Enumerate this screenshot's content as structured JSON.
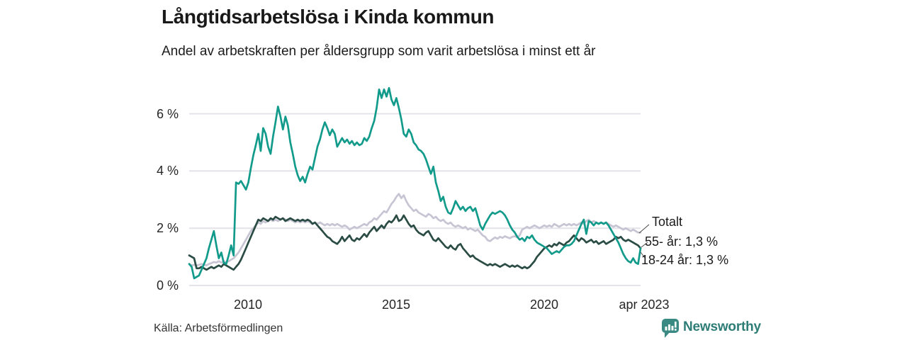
{
  "chart_data": {
    "type": "line",
    "title": "Långtidsarbetslösa i Kinda kommun",
    "subtitle": "Andel av arbetskraften per åldersgrupp som varit arbetslösa i minst ett år",
    "frequency": "monthly",
    "x_start": "2008-01",
    "x_end": "2023-04",
    "xlim": [
      2008,
      2023.33
    ],
    "ylim": [
      0,
      7
    ],
    "grid": "horizontal",
    "legend_position": "end-labels-right",
    "y_ticks": [
      {
        "label": "0 %",
        "value": 0
      },
      {
        "label": "2 %",
        "value": 2
      },
      {
        "label": "4 %",
        "value": 4
      },
      {
        "label": "6 %",
        "value": 6
      }
    ],
    "x_ticks": [
      {
        "label": "2010",
        "year": 2010
      },
      {
        "label": "2015",
        "year": 2015
      },
      {
        "label": "2020",
        "year": 2020
      },
      {
        "label": "apr 2023",
        "year": 2023.29
      }
    ],
    "series": [
      {
        "name": "Totalt",
        "color": "#c7c5d3",
        "end_label": "Totalt",
        "values": [
          0.75,
          0.7,
          0.72,
          0.7,
          0.72,
          0.75,
          0.72,
          0.7,
          0.75,
          0.78,
          0.82,
          0.8,
          0.85,
          0.8,
          0.85,
          0.8,
          0.85,
          0.9,
          0.95,
          1.05,
          1.15,
          1.3,
          1.45,
          1.6,
          1.75,
          1.9,
          2.0,
          2.1,
          2.2,
          2.15,
          2.25,
          2.2,
          2.25,
          2.3,
          2.25,
          2.3,
          2.25,
          2.3,
          2.35,
          2.3,
          2.25,
          2.3,
          2.25,
          2.2,
          2.25,
          2.2,
          2.25,
          2.2,
          2.25,
          2.2,
          2.15,
          2.2,
          2.15,
          2.2,
          2.15,
          2.1,
          2.15,
          2.1,
          2.15,
          2.1,
          2.15,
          2.1,
          2.05,
          2.1,
          2.05,
          1.95,
          2.0,
          2.05,
          2.0,
          2.05,
          2.1,
          2.15,
          2.1,
          2.2,
          2.25,
          2.35,
          2.3,
          2.4,
          2.5,
          2.6,
          2.55,
          2.7,
          2.85,
          2.95,
          3.1,
          3.2,
          3.05,
          3.15,
          2.95,
          2.8,
          2.7,
          2.6,
          2.65,
          2.55,
          2.5,
          2.45,
          2.4,
          2.5,
          2.45,
          2.35,
          2.4,
          2.3,
          2.25,
          2.3,
          2.2,
          2.15,
          2.2,
          2.1,
          2.05,
          2.1,
          2.05,
          2.0,
          2.05,
          1.95,
          2.0,
          1.95,
          1.9,
          1.95,
          1.85,
          1.75,
          1.7,
          1.58,
          1.55,
          1.62,
          1.68,
          1.63,
          1.7,
          1.66,
          1.72,
          1.68,
          1.65,
          1.7,
          1.72,
          1.68,
          1.75,
          1.95,
          2.0,
          2.05,
          2.0,
          2.05,
          2.1,
          2.05,
          2.0,
          2.05,
          2.1,
          2.05,
          2.1,
          2.05,
          2.15,
          2.1,
          2.05,
          2.1,
          2.15,
          2.1,
          2.15,
          2.1,
          2.15,
          2.1,
          2.15,
          2.2,
          2.15,
          2.25,
          2.3,
          2.2,
          2.25,
          2.2,
          2.15,
          2.2,
          2.15,
          2.2,
          2.15,
          2.1,
          2.05,
          2.1,
          2.05,
          2.0,
          1.95,
          2.0,
          1.95,
          1.9,
          1.95,
          1.9,
          1.85,
          1.85
        ]
      },
      {
        "name": "55- år",
        "color": "#2b4c44",
        "end_label": "55- år: 1,3 %",
        "final_value": "1,3 %",
        "values": [
          1.05,
          1.0,
          0.95,
          0.6,
          0.6,
          0.65,
          0.6,
          0.55,
          0.6,
          0.65,
          0.6,
          0.65,
          0.7,
          0.65,
          0.75,
          0.7,
          0.65,
          0.6,
          0.55,
          0.65,
          0.75,
          0.9,
          1.1,
          1.3,
          1.5,
          1.7,
          1.9,
          2.1,
          2.3,
          2.25,
          2.35,
          2.3,
          2.25,
          2.35,
          2.3,
          2.4,
          2.35,
          2.3,
          2.35,
          2.25,
          2.3,
          2.35,
          2.3,
          2.25,
          2.3,
          2.25,
          2.3,
          2.25,
          2.3,
          2.25,
          2.15,
          2.2,
          2.1,
          2.0,
          1.9,
          1.8,
          1.7,
          1.65,
          1.55,
          1.5,
          1.45,
          1.55,
          1.7,
          1.55,
          1.65,
          1.75,
          1.6,
          1.55,
          1.65,
          1.6,
          1.7,
          1.8,
          1.7,
          1.85,
          1.95,
          2.05,
          1.9,
          2.0,
          2.1,
          2.0,
          2.15,
          2.25,
          2.2,
          2.3,
          2.45,
          2.25,
          2.3,
          2.45,
          2.3,
          2.15,
          2.05,
          2.1,
          1.95,
          1.85,
          1.8,
          1.75,
          1.85,
          1.9,
          1.75,
          1.6,
          1.55,
          1.65,
          1.55,
          1.45,
          1.35,
          1.3,
          1.4,
          1.3,
          1.25,
          1.4,
          1.45,
          1.3,
          1.2,
          1.1,
          1.0,
          1.05,
          0.95,
          0.9,
          0.85,
          0.8,
          0.75,
          0.7,
          0.75,
          0.7,
          0.75,
          0.7,
          0.65,
          0.7,
          0.75,
          0.7,
          0.65,
          0.7,
          0.65,
          0.7,
          0.65,
          0.6,
          0.65,
          0.6,
          0.65,
          0.75,
          0.85,
          1.0,
          1.1,
          1.2,
          1.3,
          1.35,
          1.4,
          1.35,
          1.45,
          1.4,
          1.5,
          1.45,
          1.4,
          1.5,
          1.55,
          1.65,
          1.75,
          1.65,
          1.55,
          1.65,
          1.6,
          1.5,
          1.55,
          1.6,
          1.5,
          1.55,
          1.45,
          1.5,
          1.55,
          1.45,
          1.5,
          1.55,
          1.6,
          1.7,
          1.65,
          1.7,
          1.6,
          1.55,
          1.6,
          1.55,
          1.5,
          1.45,
          1.4,
          1.3
        ]
      },
      {
        "name": "18-24 år",
        "color": "#129b8b",
        "end_label": "18-24 år: 1,3 %",
        "final_value": "1,3 %",
        "values": [
          0.75,
          0.65,
          0.25,
          0.3,
          0.35,
          0.55,
          0.75,
          0.95,
          1.3,
          1.6,
          1.9,
          1.4,
          0.95,
          1.15,
          0.8,
          0.75,
          1.05,
          1.4,
          1.05,
          3.6,
          3.55,
          3.65,
          3.5,
          3.35,
          3.6,
          4.1,
          4.55,
          4.9,
          5.3,
          4.7,
          5.5,
          5.3,
          4.85,
          4.6,
          5.2,
          5.7,
          6.25,
          5.9,
          5.45,
          5.9,
          5.6,
          5.0,
          4.6,
          4.15,
          3.85,
          3.65,
          3.8,
          3.6,
          3.9,
          4.15,
          4.05,
          4.45,
          4.85,
          5.1,
          5.45,
          5.7,
          5.5,
          5.25,
          5.45,
          5.3,
          4.85,
          5.0,
          5.15,
          5.0,
          5.1,
          4.95,
          5.05,
          4.9,
          5.0,
          4.9,
          4.95,
          5.15,
          5.05,
          5.2,
          5.5,
          5.75,
          6.2,
          6.85,
          6.55,
          6.85,
          6.6,
          6.9,
          6.5,
          6.3,
          6.55,
          6.2,
          5.8,
          5.3,
          5.2,
          5.45,
          5.3,
          5.0,
          4.9,
          4.75,
          4.7,
          4.6,
          4.4,
          4.15,
          3.9,
          4.15,
          3.6,
          3.3,
          2.95,
          3.1,
          2.75,
          2.55,
          2.5,
          2.7,
          2.95,
          2.8,
          2.65,
          2.75,
          2.6,
          2.7,
          2.75,
          2.6,
          2.7,
          2.4,
          2.1,
          1.95,
          2.15,
          2.3,
          2.45,
          2.55,
          2.5,
          2.55,
          2.6,
          2.55,
          2.45,
          2.3,
          2.1,
          1.95,
          1.85,
          1.7,
          1.6,
          1.65,
          1.55,
          1.7,
          1.65,
          1.75,
          1.6,
          1.5,
          1.45,
          1.4,
          1.35,
          1.3,
          1.2,
          1.1,
          1.15,
          1.2,
          1.15,
          1.25,
          1.35,
          1.4,
          1.4,
          1.45,
          1.55,
          1.75,
          1.95,
          2.15,
          2.3,
          1.8,
          2.25,
          2.2,
          2.1,
          2.2,
          2.15,
          2.2,
          2.15,
          2.2,
          2.1,
          1.95,
          1.8,
          1.65,
          1.5,
          1.3,
          1.1,
          0.95,
          0.85,
          0.8,
          0.95,
          0.8,
          0.75,
          1.3
        ]
      }
    ]
  },
  "footer": {
    "source": "Källa: Arbetsförmedlingen",
    "brand": "Newsworthy"
  }
}
